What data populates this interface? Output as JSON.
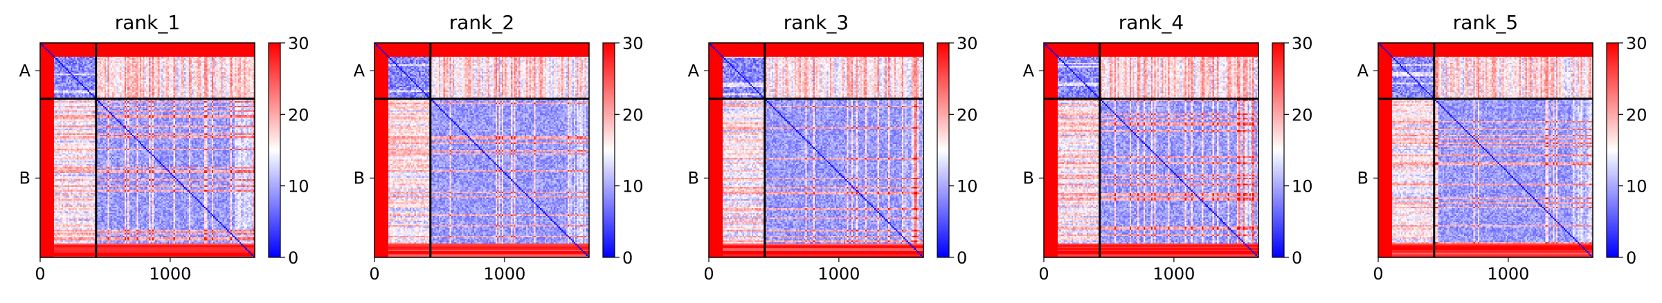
{
  "figure": {
    "panels": [
      {
        "title": "rank_1"
      },
      {
        "title": "rank_2"
      },
      {
        "title": "rank_3"
      },
      {
        "title": "rank_4"
      },
      {
        "title": "rank_5"
      }
    ]
  },
  "chart_data": [
    {
      "type": "heatmap",
      "title": "rank_1",
      "x_ticks": [
        0,
        1000
      ],
      "x_tick_labels": [
        "0",
        "1000"
      ],
      "xlim": [
        0,
        1650
      ],
      "y_tick_labels": [
        "A",
        "B"
      ],
      "chain_boundary": 430,
      "n_residues": 1650,
      "colormap": "bwr",
      "colorbar": {
        "vmin": 0,
        "vmax": 30,
        "ticks": [
          0,
          10,
          20,
          30
        ],
        "tick_labels": [
          "0",
          "10",
          "20",
          "30"
        ]
      }
    },
    {
      "type": "heatmap",
      "title": "rank_2",
      "x_ticks": [
        0,
        1000
      ],
      "x_tick_labels": [
        "0",
        "1000"
      ],
      "xlim": [
        0,
        1650
      ],
      "y_tick_labels": [
        "A",
        "B"
      ],
      "chain_boundary": 430,
      "n_residues": 1650,
      "colormap": "bwr",
      "colorbar": {
        "vmin": 0,
        "vmax": 30,
        "ticks": [
          0,
          10,
          20,
          30
        ],
        "tick_labels": [
          "0",
          "10",
          "20",
          "30"
        ]
      }
    },
    {
      "type": "heatmap",
      "title": "rank_3",
      "x_ticks": [
        0,
        1000
      ],
      "x_tick_labels": [
        "0",
        "1000"
      ],
      "xlim": [
        0,
        1650
      ],
      "y_tick_labels": [
        "A",
        "B"
      ],
      "chain_boundary": 430,
      "n_residues": 1650,
      "colormap": "bwr",
      "colorbar": {
        "vmin": 0,
        "vmax": 30,
        "ticks": [
          0,
          10,
          20,
          30
        ],
        "tick_labels": [
          "0",
          "10",
          "20",
          "30"
        ]
      }
    },
    {
      "type": "heatmap",
      "title": "rank_4",
      "x_ticks": [
        0,
        1000
      ],
      "x_tick_labels": [
        "0",
        "1000"
      ],
      "xlim": [
        0,
        1650
      ],
      "y_tick_labels": [
        "A",
        "B"
      ],
      "chain_boundary": 430,
      "n_residues": 1650,
      "colormap": "bwr",
      "colorbar": {
        "vmin": 0,
        "vmax": 30,
        "ticks": [
          0,
          10,
          20,
          30
        ],
        "tick_labels": [
          "0",
          "10",
          "20",
          "30"
        ]
      }
    },
    {
      "type": "heatmap",
      "title": "rank_5",
      "x_ticks": [
        0,
        1000
      ],
      "x_tick_labels": [
        "0",
        "1000"
      ],
      "xlim": [
        0,
        1650
      ],
      "y_tick_labels": [
        "A",
        "B"
      ],
      "chain_boundary": 430,
      "n_residues": 1650,
      "colormap": "bwr",
      "colorbar": {
        "vmin": 0,
        "vmax": 30,
        "ticks": [
          0,
          10,
          20,
          30
        ],
        "tick_labels": [
          "0",
          "10",
          "20",
          "30"
        ]
      }
    }
  ]
}
